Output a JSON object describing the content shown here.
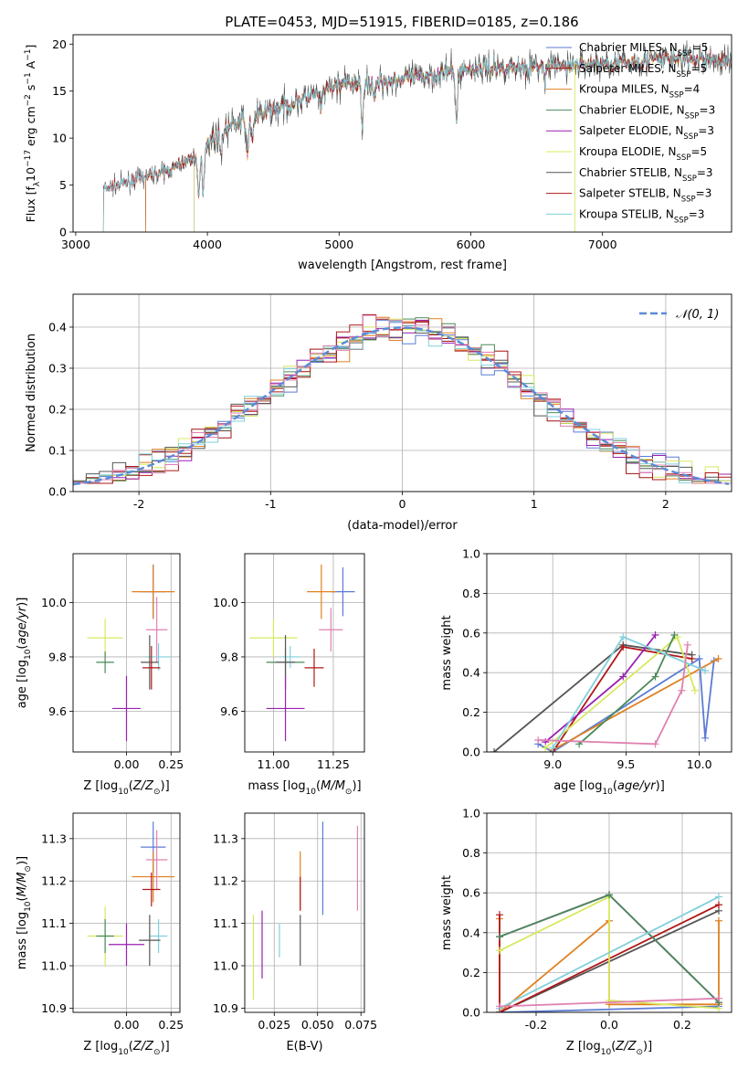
{
  "figure": {
    "title": "PLATE=0453, MJD=51915, FIBERID=0185, z=0.186"
  },
  "colors": [
    "#4f74d8",
    "#a01010",
    "#e08020",
    "#2e6e40",
    "#9010b0",
    "#d0e030",
    "#444444",
    "#b01020",
    "#60c8d8",
    "#e070a0",
    "#e02020",
    "#444444"
  ],
  "chart_data": [
    {
      "id": "spectrum",
      "type": "line",
      "title": "PLATE=0453, MJD=51915, FIBERID=0185, z=0.186",
      "xlabel": "wavelength [Angstrom, rest frame]",
      "ylabel": "Flux [f_λ10^-17 erg cm^-2 s^-1 A^-1]",
      "xlim": [
        2980,
        7980
      ],
      "ylim": [
        0,
        21
      ],
      "xticks": [
        3000,
        4000,
        5000,
        6000,
        7000
      ],
      "yticks": [
        0,
        5,
        10,
        15,
        20
      ],
      "grid": false,
      "legend_position": "right",
      "continuum": [
        [
          3200,
          4.5
        ],
        [
          3500,
          5.8
        ],
        [
          3700,
          6.5
        ],
        [
          3900,
          8.0
        ],
        [
          4000,
          9.5
        ],
        [
          4200,
          11.5
        ],
        [
          4400,
          12.5
        ],
        [
          4600,
          13.5
        ],
        [
          4800,
          14.5
        ],
        [
          5000,
          15.7
        ],
        [
          5300,
          16.0
        ],
        [
          5600,
          16.5
        ],
        [
          5900,
          17.2
        ],
        [
          6200,
          17.5
        ],
        [
          6500,
          17.6
        ],
        [
          6800,
          17.8
        ],
        [
          7200,
          18.0
        ],
        [
          7500,
          18.5
        ],
        [
          7980,
          18.2
        ]
      ],
      "absorption_features": [
        [
          3934,
          5.0
        ],
        [
          3968,
          4.5
        ],
        [
          4102,
          2.0
        ],
        [
          4304,
          4.0
        ],
        [
          4340,
          2.0
        ],
        [
          4861,
          2.0
        ],
        [
          5175,
          4.0
        ],
        [
          5270,
          2.0
        ],
        [
          5892,
          5.5
        ],
        [
          6563,
          1.5
        ]
      ],
      "series": [
        {
          "name": "Chabrier MILES, N_SSP=5",
          "label": "Chabrier MILES, N",
          "sub": "SSP",
          "suffix": "=5",
          "color": "#5b7bd5",
          "start": 3530
        },
        {
          "name": "Salpeter MILES, N_SSP=5",
          "label": "Salpeter MILES, N",
          "sub": "SSP",
          "suffix": "=5",
          "color": "#a01010",
          "start": 3530
        },
        {
          "name": "Kroupa MILES, N_SSP=4",
          "label": "Kroupa MILES, N",
          "sub": "SSP",
          "suffix": "=4",
          "color": "#e08020",
          "start": 3530
        },
        {
          "name": "Chabrier ELODIE, N_SSP=3",
          "label": "Chabrier ELODIE, N",
          "sub": "SSP",
          "suffix": "=3",
          "color": "#4a8a5a",
          "start": 3900
        },
        {
          "name": "Salpeter ELODIE, N_SSP=3",
          "label": "Salpeter ELODIE, N",
          "sub": "SSP",
          "suffix": "=3",
          "color": "#9a20b0",
          "start": 3900
        },
        {
          "name": "Kroupa ELODIE, N_SSP=5",
          "label": "Kroupa ELODIE, N",
          "sub": "SSP",
          "suffix": "=5",
          "color": "#d8e860",
          "start": 3900
        },
        {
          "name": "Chabrier STELIB, N_SSP=3",
          "label": "Chabrier STELIB, N",
          "sub": "SSP",
          "suffix": "=3",
          "color": "#555555",
          "start": 3210
        },
        {
          "name": "Salpeter STELIB, N_SSP=3",
          "label": "Salpeter STELIB, N",
          "sub": "SSP",
          "suffix": "=3",
          "color": "#b01818",
          "start": 3210
        },
        {
          "name": "Kroupa STELIB, N_SSP=3",
          "label": "Kroupa STELIB, N",
          "sub": "SSP",
          "suffix": "=3",
          "color": "#80d0dc",
          "start": 3210
        }
      ]
    },
    {
      "id": "residuals",
      "type": "histogram",
      "xlabel": "(data-model)/error",
      "ylabel": "Normed distribution",
      "xlim": [
        -2.5,
        2.5
      ],
      "ylim": [
        0,
        0.48
      ],
      "xticks": [
        -2,
        -1,
        0,
        1,
        2
      ],
      "yticks": [
        0.0,
        0.1,
        0.2,
        0.3,
        0.4
      ],
      "grid": true,
      "bin_width": 0.1,
      "reference_curve": {
        "label": "𝒩(0, 1)",
        "color": "#5b8bd8"
      },
      "series_colors": [
        "#5b7bd5",
        "#a01010",
        "#e08020",
        "#4a8a5a",
        "#9a20b0",
        "#d8e860",
        "#555555",
        "#b01818",
        "#80d0dc",
        "#e080b0"
      ]
    },
    {
      "id": "age_vs_Z",
      "type": "errorbar",
      "xlabel": "Z [log10(Z/Z☉)]",
      "ylabel": "age  [log10(age/yr)]",
      "xlim": [
        -0.3,
        0.3
      ],
      "ylim": [
        9.45,
        10.18
      ],
      "xticks": [
        0.0,
        0.25
      ],
      "yticks": [
        9.6,
        9.8,
        10.0
      ],
      "grid": true,
      "points": [
        {
          "x": 0.15,
          "y": 10.04,
          "xerr": 0.07,
          "yerr": 0.1,
          "color": "#5b7bd5"
        },
        {
          "x": 0.15,
          "y": 10.04,
          "xerr": 0.12,
          "yerr": 0.1,
          "color": "#e08020"
        },
        {
          "x": 0.17,
          "y": 9.9,
          "xerr": 0.06,
          "yerr": 0.12,
          "color": "#e080b0"
        },
        {
          "x": -0.12,
          "y": 9.87,
          "xerr": 0.1,
          "yerr": 0.07,
          "color": "#d8e860"
        },
        {
          "x": -0.12,
          "y": 9.78,
          "xerr": 0.05,
          "yerr": 0.04,
          "color": "#4a8a5a"
        },
        {
          "x": 0.18,
          "y": 9.8,
          "xerr": 0.07,
          "yerr": 0.05,
          "color": "#80d0dc"
        },
        {
          "x": 0.13,
          "y": 9.78,
          "xerr": 0.05,
          "yerr": 0.1,
          "color": "#555555"
        },
        {
          "x": 0.14,
          "y": 9.76,
          "xerr": 0.05,
          "yerr": 0.08,
          "color": "#b01818"
        },
        {
          "x": 0.0,
          "y": 9.61,
          "xerr": 0.08,
          "yerr": 0.12,
          "color": "#9a20b0"
        }
      ]
    },
    {
      "id": "age_vs_mass",
      "type": "errorbar",
      "xlabel": "mass [log10(M/M☉)]",
      "ylabel": "",
      "xlim": [
        10.88,
        11.38
      ],
      "ylim": [
        9.45,
        10.18
      ],
      "xticks": [
        11.0,
        11.25
      ],
      "yticks": [
        9.6,
        9.8,
        10.0
      ],
      "grid": true,
      "points": [
        {
          "x": 11.29,
          "y": 10.04,
          "xerr": 0.05,
          "yerr": 0.09,
          "color": "#5b7bd5"
        },
        {
          "x": 11.2,
          "y": 10.04,
          "xerr": 0.06,
          "yerr": 0.1,
          "color": "#e08020"
        },
        {
          "x": 11.24,
          "y": 9.9,
          "xerr": 0.05,
          "yerr": 0.08,
          "color": "#e080b0"
        },
        {
          "x": 11.0,
          "y": 9.87,
          "xerr": 0.1,
          "yerr": 0.07,
          "color": "#d8e860"
        },
        {
          "x": 11.05,
          "y": 9.78,
          "xerr": 0.08,
          "yerr": 0.05,
          "color": "#4a8a5a"
        },
        {
          "x": 11.07,
          "y": 9.8,
          "xerr": 0.04,
          "yerr": 0.04,
          "color": "#80d0dc"
        },
        {
          "x": 11.05,
          "y": 9.78,
          "xerr": 0.04,
          "yerr": 0.1,
          "color": "#555555"
        },
        {
          "x": 11.17,
          "y": 9.76,
          "xerr": 0.04,
          "yerr": 0.07,
          "color": "#b01818"
        },
        {
          "x": 11.05,
          "y": 9.61,
          "xerr": 0.08,
          "yerr": 0.12,
          "color": "#9a20b0"
        }
      ]
    },
    {
      "id": "weight_vs_age",
      "type": "line",
      "xlabel": "age  [log10(age/yr)]",
      "ylabel": "mass weight",
      "xlim": [
        8.55,
        10.22
      ],
      "ylim": [
        0.0,
        1.0
      ],
      "xticks": [
        9.0,
        9.5,
        10.0
      ],
      "yticks": [
        0.0,
        0.2,
        0.4,
        0.6,
        0.8,
        1.0
      ],
      "grid": true,
      "series": [
        {
          "color": "#5b7bd5",
          "points": [
            [
              8.9,
              0.04
            ],
            [
              9.0,
              0.0
            ],
            [
              10.0,
              0.47
            ],
            [
              10.04,
              0.07
            ],
            [
              10.1,
              0.46
            ]
          ]
        },
        {
          "color": "#e08020",
          "points": [
            [
              9.0,
              0.01
            ],
            [
              10.13,
              0.47
            ]
          ]
        },
        {
          "color": "#555555",
          "points": [
            [
              8.6,
              0.0
            ],
            [
              9.48,
              0.54
            ],
            [
              9.95,
              0.49
            ]
          ]
        },
        {
          "color": "#b01818",
          "points": [
            [
              9.0,
              0.0
            ],
            [
              9.48,
              0.53
            ],
            [
              9.95,
              0.47
            ]
          ]
        },
        {
          "color": "#9a20b0",
          "points": [
            [
              8.95,
              0.05
            ],
            [
              9.48,
              0.38
            ],
            [
              9.7,
              0.59
            ]
          ]
        },
        {
          "color": "#d8e860",
          "points": [
            [
              8.95,
              0.02
            ],
            [
              9.85,
              0.58
            ],
            [
              9.97,
              0.31
            ]
          ]
        },
        {
          "color": "#4a8a5a",
          "points": [
            [
              9.18,
              0.04
            ],
            [
              9.7,
              0.38
            ],
            [
              9.83,
              0.59
            ]
          ]
        },
        {
          "color": "#80d0dc",
          "points": [
            [
              9.0,
              0.02
            ],
            [
              9.48,
              0.58
            ],
            [
              10.04,
              0.41
            ]
          ]
        },
        {
          "color": "#e080b0",
          "points": [
            [
              8.9,
              0.06
            ],
            [
              9.7,
              0.04
            ],
            [
              9.88,
              0.31
            ],
            [
              9.92,
              0.54
            ]
          ]
        }
      ]
    },
    {
      "id": "mass_vs_Z",
      "type": "errorbar",
      "xlabel": "Z [log10(Z/Z☉)]",
      "ylabel": "mass [log10(M/M☉)]",
      "xlim": [
        -0.3,
        0.3
      ],
      "ylim": [
        10.89,
        11.36
      ],
      "xticks": [
        0.0,
        0.25
      ],
      "yticks": [
        10.9,
        11.0,
        11.1,
        11.2,
        11.3
      ],
      "grid": true,
      "points": [
        {
          "x": 0.15,
          "y": 11.28,
          "xerr": 0.07,
          "yerr": 0.06,
          "color": "#5b7bd5"
        },
        {
          "x": 0.15,
          "y": 11.21,
          "xerr": 0.12,
          "yerr": 0.06,
          "color": "#e08020"
        },
        {
          "x": 0.17,
          "y": 11.25,
          "xerr": 0.06,
          "yerr": 0.07,
          "color": "#e080b0"
        },
        {
          "x": 0.14,
          "y": 11.18,
          "xerr": 0.05,
          "yerr": 0.04,
          "color": "#b01818"
        },
        {
          "x": 0.18,
          "y": 11.07,
          "xerr": 0.05,
          "yerr": 0.04,
          "color": "#80d0dc"
        },
        {
          "x": 0.13,
          "y": 11.06,
          "xerr": 0.06,
          "yerr": 0.06,
          "color": "#555555"
        },
        {
          "x": -0.12,
          "y": 11.07,
          "xerr": 0.1,
          "yerr": 0.07,
          "color": "#d8e860"
        },
        {
          "x": -0.12,
          "y": 11.07,
          "xerr": 0.05,
          "yerr": 0.04,
          "color": "#4a8a5a"
        },
        {
          "x": 0.0,
          "y": 11.05,
          "xerr": 0.1,
          "yerr": 0.05,
          "color": "#9a20b0"
        }
      ]
    },
    {
      "id": "mass_vs_EBV",
      "type": "errorbar",
      "xlabel": "E(B-V)",
      "ylabel": "",
      "xlim": [
        0.008,
        0.077
      ],
      "ylim": [
        10.89,
        11.36
      ],
      "xticks": [
        0.025,
        0.05,
        0.075
      ],
      "yticks": [
        10.9,
        11.0,
        11.1,
        11.2,
        11.3
      ],
      "grid": true,
      "points": [
        {
          "x": 0.053,
          "y": 11.23,
          "xerr": 0,
          "yerr": 0.11,
          "color": "#5b7bd5"
        },
        {
          "x": 0.073,
          "y": 11.23,
          "xerr": 0,
          "yerr": 0.1,
          "color": "#e080b0"
        },
        {
          "x": 0.04,
          "y": 11.2,
          "xerr": 0,
          "yerr": 0.07,
          "color": "#e08020"
        },
        {
          "x": 0.04,
          "y": 11.17,
          "xerr": 0,
          "yerr": 0.04,
          "color": "#b01818"
        },
        {
          "x": 0.04,
          "y": 11.06,
          "xerr": 0,
          "yerr": 0.06,
          "color": "#555555"
        },
        {
          "x": 0.028,
          "y": 11.06,
          "xerr": 0,
          "yerr": 0.04,
          "color": "#80d0dc"
        },
        {
          "x": 0.018,
          "y": 11.05,
          "xerr": 0,
          "yerr": 0.08,
          "color": "#9a20b0"
        },
        {
          "x": 0.013,
          "y": 11.02,
          "xerr": 0,
          "yerr": 0.1,
          "color": "#d8e860"
        }
      ]
    },
    {
      "id": "weight_vs_Z",
      "type": "line",
      "xlabel": "Z [log10(Z/Z☉)]",
      "ylabel": "mass weight",
      "xlim": [
        -0.335,
        0.335
      ],
      "ylim": [
        0.0,
        1.0
      ],
      "xticks": [
        -0.2,
        0.0,
        0.2
      ],
      "yticks": [
        0.0,
        0.2,
        0.4,
        0.6,
        0.8,
        1.0
      ],
      "grid": true,
      "series": [
        {
          "color": "#5b7bd5",
          "points": [
            [
              -0.3,
              0.0
            ],
            [
              0.3,
              0.03
            ]
          ]
        },
        {
          "color": "#e08020",
          "points": [
            [
              -0.3,
              0.47
            ],
            [
              -0.3,
              0.0
            ],
            [
              0.0,
              0.46
            ],
            [
              0.0,
              0.04
            ],
            [
              0.3,
              0.04
            ],
            [
              0.3,
              0.46
            ]
          ]
        },
        {
          "color": "#555555",
          "points": [
            [
              -0.3,
              0.0
            ],
            [
              0.3,
              0.51
            ]
          ]
        },
        {
          "color": "#b01818",
          "points": [
            [
              -0.3,
              0.49
            ],
            [
              -0.3,
              0.0
            ],
            [
              0.3,
              0.54
            ]
          ]
        },
        {
          "color": "#9a20b0",
          "points": [
            [
              -0.3,
              0.38
            ],
            [
              0.0,
              0.59
            ],
            [
              0.3,
              0.05
            ]
          ]
        },
        {
          "color": "#d8e860",
          "points": [
            [
              -0.3,
              0.31
            ],
            [
              0.0,
              0.58
            ],
            [
              0.0,
              0.06
            ],
            [
              0.3,
              0.02
            ]
          ]
        },
        {
          "color": "#4a8a5a",
          "points": [
            [
              -0.3,
              0.38
            ],
            [
              0.0,
              0.59
            ],
            [
              0.3,
              0.05
            ]
          ]
        },
        {
          "color": "#80d0dc",
          "points": [
            [
              -0.3,
              0.02
            ],
            [
              0.3,
              0.58
            ]
          ]
        },
        {
          "color": "#e080b0",
          "points": [
            [
              -0.3,
              0.03
            ],
            [
              0.3,
              0.07
            ]
          ]
        }
      ]
    }
  ]
}
